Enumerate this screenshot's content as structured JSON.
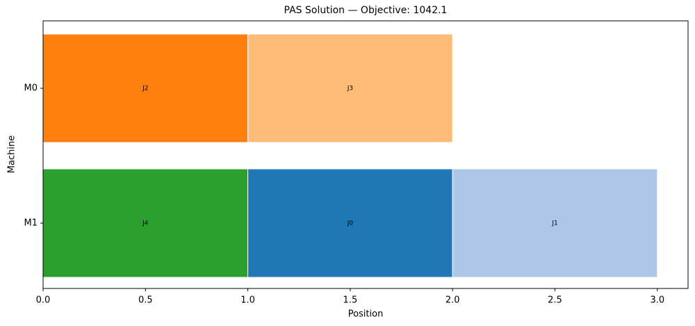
{
  "chart_data": {
    "type": "gantt",
    "title": "PAS Solution — Objective: 1042.1",
    "x_label": "Position",
    "y_label": "Machine",
    "xlim": [
      0,
      3.15
    ],
    "xticks": [
      {
        "value": 0,
        "label": "0.0"
      },
      0.5,
      {
        "value": 1,
        "label": "1.0"
      },
      1.5,
      {
        "value": 2,
        "label": "2.0"
      },
      2.5,
      {
        "value": 3,
        "label": "3.0"
      }
    ],
    "rows": [
      {
        "name": "M0",
        "tasks": [
          {
            "label": "J2",
            "start": 0,
            "duration": 1,
            "color": "#ff7f0e"
          },
          {
            "label": "J3",
            "start": 1,
            "duration": 1,
            "color": "#ffbb78"
          }
        ]
      },
      {
        "name": "M1",
        "tasks": [
          {
            "label": "J4",
            "start": 0,
            "duration": 1,
            "color": "#2ca02c"
          },
          {
            "label": "J0",
            "start": 1,
            "duration": 1,
            "color": "#1f77b4"
          },
          {
            "label": "J1",
            "start": 2,
            "duration": 1,
            "color": "#aec7e8"
          }
        ]
      }
    ]
  }
}
